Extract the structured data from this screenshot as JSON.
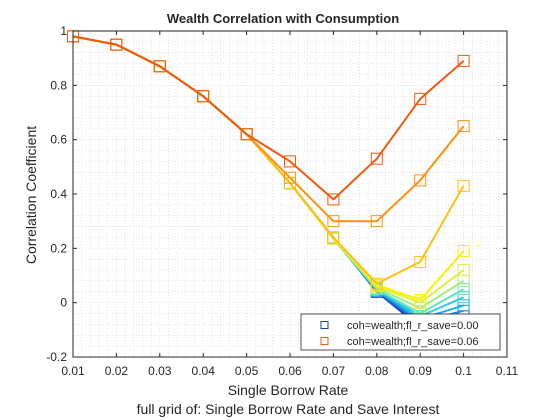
{
  "chart_data": {
    "type": "line",
    "title": "Wealth Correlation with Consumption",
    "xlabel": "Single Borrow Rate",
    "xlabel2": "full grid of: Single Borrow Rate and Save Interest",
    "ylabel": "Correlation Coefficient",
    "xlim": [
      0.01,
      0.11
    ],
    "ylim": [
      -0.2,
      1.0
    ],
    "xticks": [
      "0.01",
      "0.02",
      "0.03",
      "0.04",
      "0.05",
      "0.06",
      "0.07",
      "0.08",
      "0.09",
      "0.1",
      "0.11"
    ],
    "yticks": [
      "-0.2",
      "0",
      "0.2",
      "0.4",
      "0.6",
      "0.8",
      "1"
    ],
    "grid": "minor dotted",
    "legend_position": "bottom-right",
    "x": [
      0.01,
      0.02,
      0.03,
      0.04,
      0.05,
      0.06,
      0.07,
      0.08,
      0.09,
      0.1
    ],
    "series": [
      {
        "color": "#1f3ca8",
        "values": [
          0.98,
          0.95,
          0.87,
          0.76,
          0.62,
          0.44,
          0.24,
          0.04,
          -0.09,
          -0.07
        ]
      },
      {
        "color": "#1a5fd6",
        "values": [
          0.98,
          0.95,
          0.87,
          0.76,
          0.62,
          0.44,
          0.24,
          0.04,
          -0.08,
          -0.05
        ]
      },
      {
        "color": "#1a88e8",
        "values": [
          0.98,
          0.95,
          0.87,
          0.76,
          0.62,
          0.44,
          0.24,
          0.045,
          -0.07,
          -0.03
        ]
      },
      {
        "color": "#20b0e8",
        "values": [
          0.98,
          0.95,
          0.87,
          0.76,
          0.62,
          0.44,
          0.235,
          0.045,
          -0.06,
          -0.01
        ]
      },
      {
        "color": "#30d0d8",
        "values": [
          0.98,
          0.95,
          0.87,
          0.76,
          0.62,
          0.44,
          0.235,
          0.05,
          -0.05,
          0.02
        ]
      },
      {
        "color": "#60e8b8",
        "values": [
          0.98,
          0.95,
          0.87,
          0.76,
          0.62,
          0.44,
          0.235,
          0.05,
          -0.04,
          0.05
        ]
      },
      {
        "color": "#a0f080",
        "values": [
          0.98,
          0.95,
          0.87,
          0.76,
          0.62,
          0.44,
          0.235,
          0.055,
          -0.02,
          0.08
        ]
      },
      {
        "color": "#e0f040",
        "values": [
          0.98,
          0.95,
          0.87,
          0.76,
          0.62,
          0.44,
          0.235,
          0.06,
          0.0,
          0.12
        ]
      },
      {
        "color": "#fff000",
        "values": [
          0.98,
          0.95,
          0.87,
          0.76,
          0.62,
          0.44,
          0.24,
          0.065,
          0.01,
          0.19
        ]
      },
      {
        "color": "#ffc010",
        "values": [
          0.98,
          0.95,
          0.87,
          0.76,
          0.62,
          0.44,
          0.24,
          0.07,
          0.15,
          0.43
        ]
      },
      {
        "color": "#ff9010",
        "values": [
          0.98,
          0.95,
          0.87,
          0.76,
          0.62,
          0.46,
          0.3,
          0.3,
          0.45,
          0.65
        ]
      },
      {
        "color": "#f05a10",
        "values": [
          0.98,
          0.95,
          0.87,
          0.76,
          0.62,
          0.52,
          0.38,
          0.53,
          0.75,
          0.89
        ]
      }
    ],
    "legend": [
      {
        "label": "coh=wealth;fl_r_save=0.00",
        "color": "#1f3ca8"
      },
      {
        "label": "coh=wealth;fl_r_save=0.06",
        "color": "#f05a10"
      }
    ]
  }
}
